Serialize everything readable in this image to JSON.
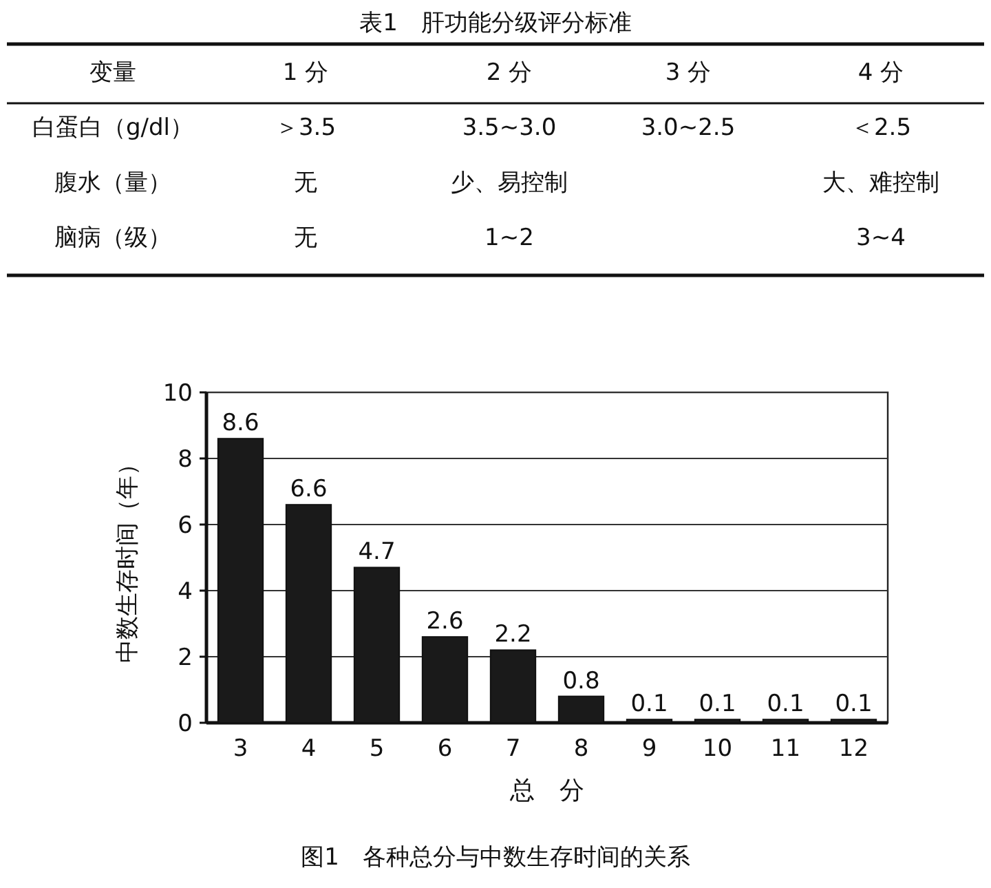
{
  "chart_data": [
    {
      "type": "other",
      "title": "表1　肝功能分级评分标准",
      "annotations": [
        "变量",
        "1 分",
        "2 分",
        "3 分",
        "4 分",
        "白蛋白（g/dl）",
        "＞3.5",
        "3.5~3.0",
        "3.0~2.5",
        "＜2.5",
        "腹水（量）",
        "无",
        "少、易控制",
        null,
        "大、难控制",
        "脑病（级）",
        "无",
        "1~2",
        null,
        "3~4"
      ]
    },
    {
      "type": "bar",
      "categories": [
        "3",
        "4",
        "5",
        "6",
        "7",
        "8",
        "9",
        "10",
        "11",
        "12"
      ],
      "values": [
        8.6,
        6.6,
        4.7,
        2.6,
        2.2,
        0.8,
        0.1,
        0.1,
        0.1,
        0.1
      ],
      "color": "#1a1a1a",
      "data_labels": true,
      "ylim": [
        0,
        10
      ],
      "yticks": [
        0,
        2,
        4,
        6,
        8,
        10
      ],
      "grid": "y",
      "xlabel": "总　分",
      "ylabel": "中数生存时间（年）",
      "annotations": [
        "图1　各种总分与中数生存时间的关系"
      ]
    }
  ]
}
